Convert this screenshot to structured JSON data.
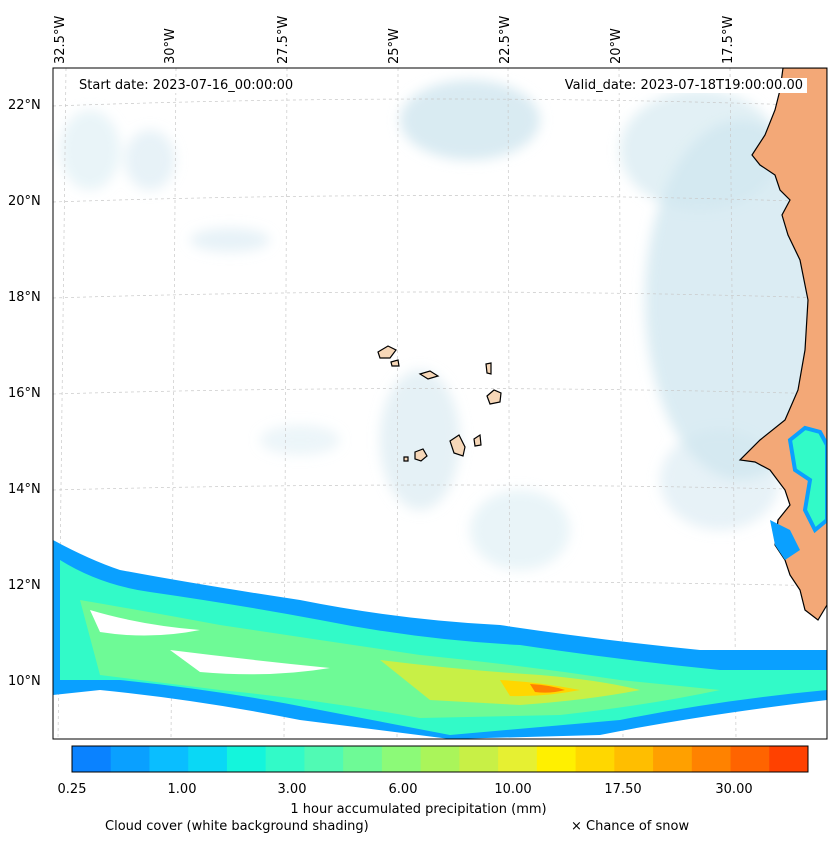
{
  "map": {
    "start_date_label": "Start date: 2023-07-16_00:00:00",
    "valid_date_label": "Valid_date: 2023-07-18T19:00:00.00",
    "lon_labels": [
      "32.5°W",
      "30°W",
      "27.5°W",
      "25°W",
      "22.5°W",
      "20°W",
      "17.5°W"
    ],
    "lat_labels": [
      "22°N",
      "20°N",
      "18°N",
      "16°N",
      "14°N",
      "12°N",
      "10°N"
    ],
    "colors": {
      "land": "#f3a877",
      "cloud": "#cfe6ef",
      "coast": "#000000"
    }
  },
  "colorbar": {
    "title": "1 hour accumulated precipitation (mm)",
    "tick_labels": [
      "0.25",
      "1.00",
      "3.00",
      "6.00",
      "10.00",
      "17.50",
      "30.00"
    ],
    "colors": [
      "#0a82ff",
      "#0aa0ff",
      "#0abeff",
      "#0ad8f5",
      "#14f5dc",
      "#32fac8",
      "#50fab4",
      "#6efa96",
      "#8cfa78",
      "#aaf55a",
      "#c8f046",
      "#e6f032",
      "#fff000",
      "#ffd700",
      "#ffbe00",
      "#ffa000",
      "#ff8200",
      "#ff6400",
      "#ff4100"
    ]
  },
  "footer": {
    "cloud_label": "Cloud cover (white background shading)",
    "snow_label": "× Chance of snow"
  }
}
